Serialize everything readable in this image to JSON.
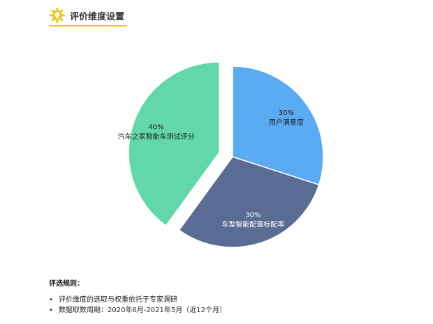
{
  "header": {
    "title": "评价维度设置",
    "icon": "gear-lightbulb-icon",
    "accent_color": "#f0c419"
  },
  "chart_data": {
    "type": "pie",
    "title": "",
    "slices": [
      {
        "label": "用户满意度",
        "value": 30,
        "value_label": "30%",
        "color": "#5aabf1"
      },
      {
        "label": "车型智能配置标配率",
        "value": 30,
        "value_label": "30%",
        "color": "#5a6c93"
      },
      {
        "label": "汽车之家智能车测试评分",
        "value": 40,
        "value_label": "40%",
        "color": "#62d8aa"
      }
    ],
    "exploded_slice": "汽车之家智能车测试评分",
    "legend": "none"
  },
  "rules": {
    "title": "评选规则：",
    "items": [
      "评价维度的选取与权重依托于专家调研",
      "数据取数周期：2020年6月-2021年5月（近12个月）"
    ]
  }
}
